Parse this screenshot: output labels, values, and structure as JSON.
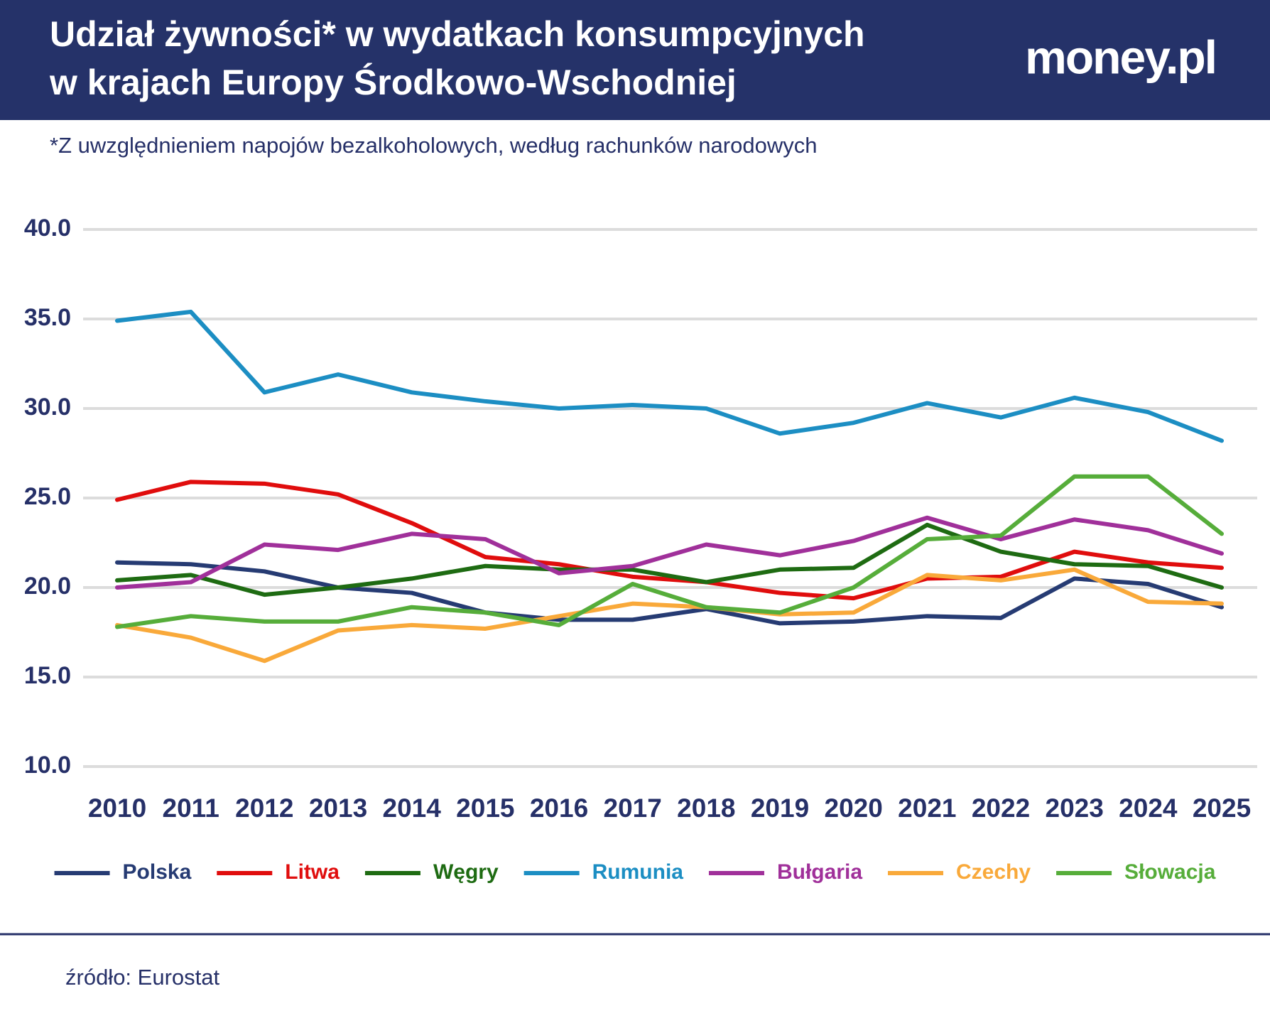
{
  "chart_data": {
    "type": "line",
    "title": "Udział żywności* w wydatkach konsumpcyjnych",
    "title_line2": "w krajach Europy Środkowo-Wschodniej",
    "logo": "money.pl",
    "subtitle": "*Z uwzględnieniem napojów bezalkoholowych, według rachunków narodowych",
    "source": "źródło: Eurostat",
    "categories": [
      "2010",
      "2011",
      "2012",
      "2013",
      "2014",
      "2015",
      "2016",
      "2017",
      "2018",
      "2019",
      "2020",
      "2021",
      "2022",
      "2023",
      "2024",
      "2025"
    ],
    "ylim": [
      10,
      40
    ],
    "yticks": [
      {
        "value": 10,
        "label": "10.0"
      },
      {
        "value": 15,
        "label": "15.0"
      },
      {
        "value": 20,
        "label": "20.0"
      },
      {
        "value": 25,
        "label": "25.0"
      },
      {
        "value": 30,
        "label": "30.0"
      },
      {
        "value": 35,
        "label": "35.0"
      },
      {
        "value": 40,
        "label": "40.0"
      }
    ],
    "grid": true,
    "series": [
      {
        "name": "Polska",
        "color": "#263b73",
        "values": [
          21.4,
          21.3,
          20.9,
          20.0,
          19.7,
          18.6,
          18.2,
          18.2,
          18.8,
          18.0,
          18.1,
          18.4,
          18.3,
          20.5,
          20.2,
          18.9
        ]
      },
      {
        "name": "Litwa",
        "color": "#e00d0d",
        "values": [
          24.9,
          25.9,
          25.8,
          25.2,
          23.6,
          21.7,
          21.3,
          20.6,
          20.3,
          19.7,
          19.4,
          20.5,
          20.6,
          22.0,
          21.4,
          21.1
        ]
      },
      {
        "name": "Węgry",
        "color": "#1e6b12",
        "values": [
          20.4,
          20.7,
          19.6,
          20.0,
          20.5,
          21.2,
          21.0,
          21.0,
          20.3,
          21.0,
          21.1,
          23.5,
          22.0,
          21.3,
          21.2,
          20.0
        ]
      },
      {
        "name": "Rumunia",
        "color": "#1c8ec3",
        "values": [
          34.9,
          35.4,
          30.9,
          31.9,
          30.9,
          30.4,
          30.0,
          30.2,
          30.0,
          28.6,
          29.2,
          30.3,
          29.5,
          30.6,
          29.8,
          28.2
        ]
      },
      {
        "name": "Bułgaria",
        "color": "#a0309a",
        "values": [
          20.0,
          20.3,
          22.4,
          22.1,
          23.0,
          22.7,
          20.8,
          21.2,
          22.4,
          21.8,
          22.6,
          23.9,
          22.7,
          23.8,
          23.2,
          21.9
        ]
      },
      {
        "name": "Czechy",
        "color": "#f9a93a",
        "values": [
          17.9,
          17.2,
          15.9,
          17.6,
          17.9,
          17.7,
          18.4,
          19.1,
          18.9,
          18.5,
          18.6,
          20.7,
          20.4,
          21.0,
          19.2,
          19.1
        ]
      },
      {
        "name": "Słowacja",
        "color": "#56ad3a",
        "values": [
          17.8,
          18.4,
          18.1,
          18.1,
          18.9,
          18.6,
          17.9,
          20.2,
          18.9,
          18.6,
          20.0,
          22.7,
          22.9,
          26.2,
          26.2,
          23.0
        ]
      }
    ]
  }
}
